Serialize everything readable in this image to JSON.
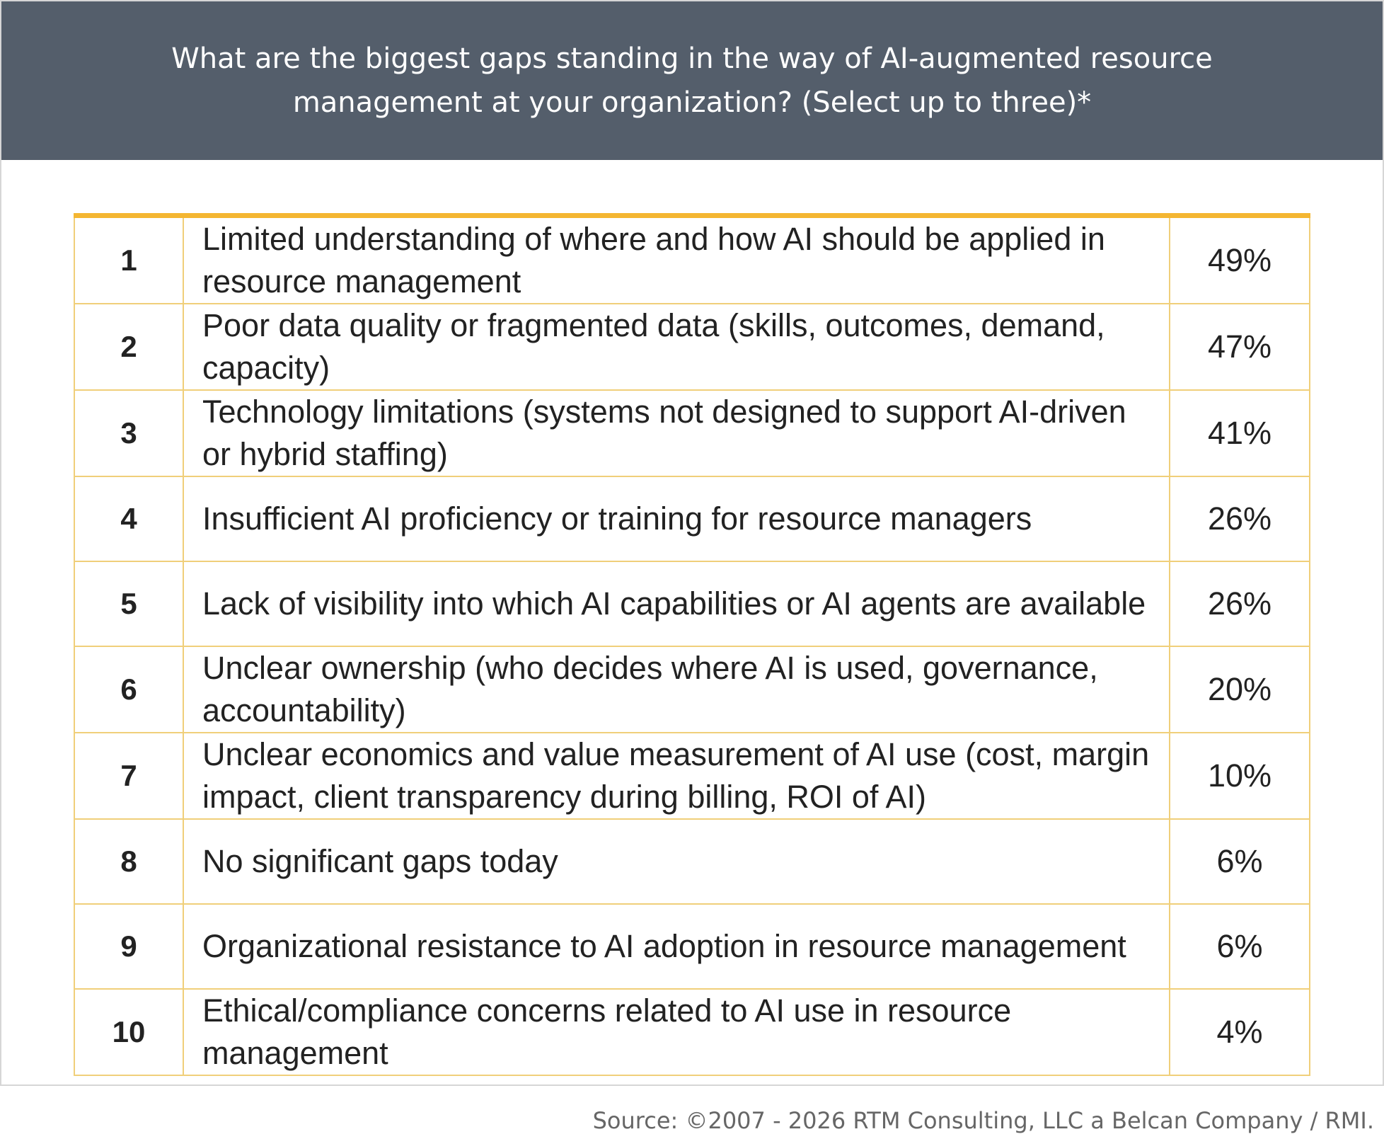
{
  "header": {
    "title": "What are the biggest gaps standing in the way of AI-augmented resource management at your organization? (Select up to three)*"
  },
  "table": {
    "rows": [
      [
        "1",
        "Limited understanding of where and how AI should be applied in resource management",
        "49%"
      ],
      [
        "2",
        "Poor data quality or fragmented data (skills, outcomes, demand, capacity)",
        "47%"
      ],
      [
        "3",
        "Technology limitations (systems not designed to support AI-driven or hybrid staffing)",
        "41%"
      ],
      [
        "4",
        "Insufficient AI proficiency or training for resource managers",
        "26%"
      ],
      [
        "5",
        "Lack of visibility into which AI capabilities or AI agents are available",
        "26%"
      ],
      [
        "6",
        "Unclear ownership (who decides where AI is used, governance, accountability)",
        "20%"
      ],
      [
        "7",
        "Unclear economics and value measurement of AI use (cost, margin impact, client transparency during billing, ROI of AI)",
        "10%"
      ],
      [
        "8",
        "No significant gaps today",
        "6%"
      ],
      [
        "9",
        "Organizational resistance to AI adoption in resource management",
        "6%"
      ],
      [
        "10",
        "Ethical/compliance concerns related to AI use in resource management",
        "4%"
      ]
    ]
  },
  "footer": {
    "source": "Source: ©2007 - 2026 RTM Consulting, LLC a Belcan Company / RMI."
  }
}
